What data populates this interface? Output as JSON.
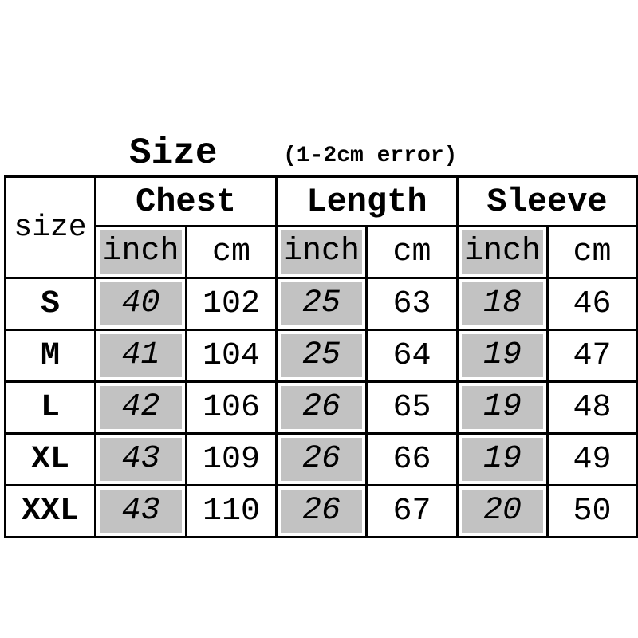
{
  "title": "Size",
  "note": "(1-2cm error)",
  "table": {
    "corner_label": "size",
    "groups": [
      "Chest",
      "Length",
      "Sleeve"
    ],
    "unit_labels": {
      "inch": "inch",
      "cm": "cm"
    },
    "rows": [
      {
        "size": "S",
        "chest_inch": "40",
        "chest_cm": "102",
        "length_inch": "25",
        "length_cm": "63",
        "sleeve_inch": "18",
        "sleeve_cm": "46"
      },
      {
        "size": "M",
        "chest_inch": "41",
        "chest_cm": "104",
        "length_inch": "25",
        "length_cm": "64",
        "sleeve_inch": "19",
        "sleeve_cm": "47"
      },
      {
        "size": "L",
        "chest_inch": "42",
        "chest_cm": "106",
        "length_inch": "26",
        "length_cm": "65",
        "sleeve_inch": "19",
        "sleeve_cm": "48"
      },
      {
        "size": "XL",
        "chest_inch": "43",
        "chest_cm": "109",
        "length_inch": "26",
        "length_cm": "66",
        "sleeve_inch": "19",
        "sleeve_cm": "49"
      },
      {
        "size": "XXL",
        "chest_inch": "43",
        "chest_cm": "110",
        "length_inch": "26",
        "length_cm": "67",
        "sleeve_inch": "20",
        "sleeve_cm": "50"
      }
    ]
  },
  "colors": {
    "inch_cell": "#c2c2c2",
    "border": "#000000"
  }
}
